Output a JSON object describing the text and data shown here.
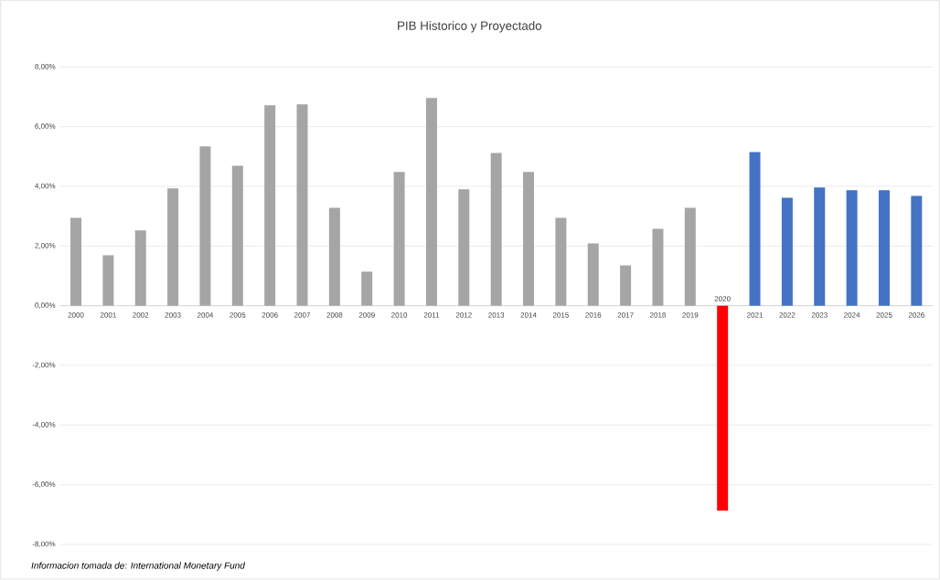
{
  "chart_data": {
    "type": "bar",
    "title": "PIB Historico y Proyectado",
    "categories": [
      "2000",
      "2001",
      "2002",
      "2003",
      "2004",
      "2005",
      "2006",
      "2007",
      "2008",
      "2009",
      "2010",
      "2011",
      "2012",
      "2013",
      "2014",
      "2015",
      "2016",
      "2017",
      "2018",
      "2019",
      "2020",
      "2021",
      "2022",
      "2023",
      "2024",
      "2025",
      "2026"
    ],
    "values": [
      2.94,
      1.69,
      2.52,
      3.93,
      5.34,
      4.69,
      6.72,
      6.75,
      3.28,
      1.14,
      4.48,
      6.96,
      3.9,
      5.12,
      4.48,
      2.94,
      2.09,
      1.35,
      2.58,
      3.28,
      -6.87,
      5.15,
      3.62,
      3.96,
      3.87,
      3.87,
      3.68
    ],
    "colors": [
      "#a5a5a5",
      "#a5a5a5",
      "#a5a5a5",
      "#a5a5a5",
      "#a5a5a5",
      "#a5a5a5",
      "#a5a5a5",
      "#a5a5a5",
      "#a5a5a5",
      "#a5a5a5",
      "#a5a5a5",
      "#a5a5a5",
      "#a5a5a5",
      "#a5a5a5",
      "#a5a5a5",
      "#a5a5a5",
      "#a5a5a5",
      "#a5a5a5",
      "#a5a5a5",
      "#a5a5a5",
      "#ff0000",
      "#4472c4",
      "#4472c4",
      "#4472c4",
      "#4472c4",
      "#4472c4",
      "#4472c4"
    ],
    "ylim": [
      -8,
      8
    ],
    "yticks": [
      {
        "value": -8,
        "label": "-8,00%"
      },
      {
        "value": -6,
        "label": "-6,00%"
      },
      {
        "value": -4,
        "label": "-4,00%"
      },
      {
        "value": -2,
        "label": "-2,00%"
      },
      {
        "value": 0,
        "label": "0,00%"
      },
      {
        "value": 2,
        "label": "2,00%"
      },
      {
        "value": 4,
        "label": "4,00%"
      },
      {
        "value": 6,
        "label": "6,00%"
      },
      {
        "value": 8,
        "label": "8,00%"
      }
    ],
    "grid": "y",
    "annotations": [
      "*Informacion tomada de: International Monetary Fund*"
    ]
  }
}
